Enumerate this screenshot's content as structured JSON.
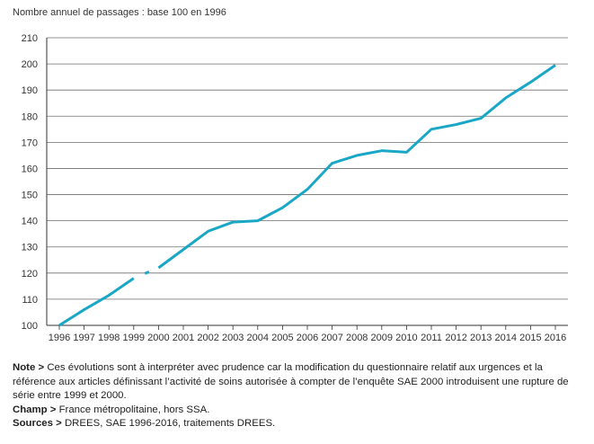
{
  "chart_data": {
    "type": "line",
    "ylabel": "Nombre annuel de passages : base 100 en 1996",
    "xlabel": "",
    "x": [
      "1996",
      "1997",
      "1998",
      "1999",
      "2000",
      "2001",
      "2002",
      "2003",
      "2004",
      "2005",
      "2006",
      "2007",
      "2008",
      "2009",
      "2010",
      "2011",
      "2012",
      "2013",
      "2014",
      "2015",
      "2016"
    ],
    "series": [
      {
        "name": "Nombre annuel de passages",
        "color": "#1aa7c6",
        "values": [
          100,
          106,
          111.5,
          118,
          122,
          129,
          136,
          139.5,
          140,
          145,
          152,
          162,
          165,
          166.8,
          166.2,
          175,
          176.8,
          179.2,
          187,
          193,
          199.5
        ],
        "break_between": [
          "1999",
          "2000"
        ]
      }
    ],
    "yticks": [
      100,
      110,
      120,
      130,
      140,
      150,
      160,
      170,
      180,
      190,
      200,
      210
    ],
    "ylim": [
      100,
      210
    ],
    "grid": true
  },
  "notes": {
    "note_label": "Note >",
    "note_text": "Ces évolutions sont à interpréter avec prudence car la modification du questionnaire relatif aux urgences et la référence aux articles définissant l’activité de soins autorisée à compter de l’enquête SAE 2000 introduisent une rupture de série entre 1999 et 2000.",
    "champ_label": "Champ >",
    "champ_text": "France métropolitaine, hors SSA.",
    "sources_label": "Sources >",
    "sources_text": "DREES, SAE 1996-2016, traitements DREES."
  }
}
